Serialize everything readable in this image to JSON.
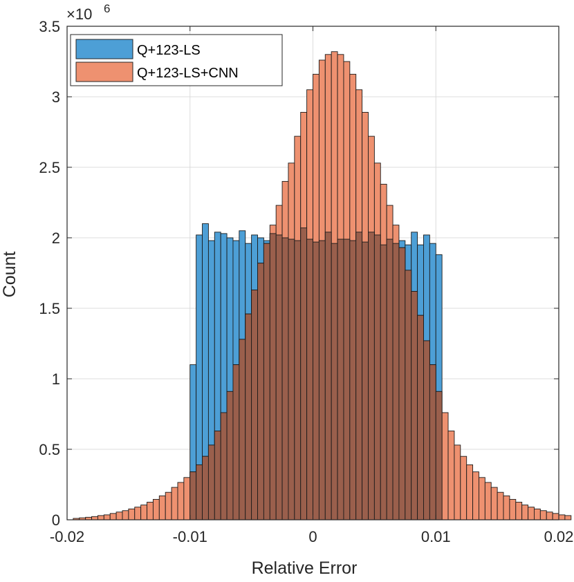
{
  "chart_data": {
    "type": "histogram",
    "xlabel": "Relative Error",
    "ylabel": "Count",
    "y_exponent": "×10",
    "y_exponent_power": "6",
    "xlim": [
      -0.02,
      0.02
    ],
    "ylim": [
      0,
      3.5
    ],
    "y_scale_factor": 1000000,
    "x_ticks": [
      -0.02,
      -0.01,
      0,
      0.01,
      0.02
    ],
    "x_tick_labels": [
      "-0.02",
      "-0.01",
      "0",
      "0.01",
      "0.02"
    ],
    "y_ticks": [
      0,
      0.5,
      1,
      1.5,
      2,
      2.5,
      3,
      3.5
    ],
    "y_tick_labels": [
      "0",
      "0.5",
      "1",
      "1.5",
      "2",
      "2.5",
      "3",
      "3.5"
    ],
    "grid": true,
    "legend_position": "top-left",
    "bin_start": -0.0195,
    "bin_width": 0.0005,
    "series": [
      {
        "name": "Q+123-LS",
        "color": "#4d9fd6",
        "bin_start": -0.01,
        "values": [
          1.1,
          2.02,
          2.1,
          1.98,
          2.04,
          2.03,
          2.0,
          1.98,
          2.05,
          1.96,
          2.02,
          2.0,
          1.98,
          2.03,
          2.02,
          2.0,
          1.99,
          1.98,
          2.07,
          1.99,
          1.97,
          1.98,
          2.04,
          1.96,
          1.99,
          1.99,
          1.98,
          2.04,
          1.97,
          2.04,
          2.02,
          1.95,
          1.99,
          1.96,
          1.98,
          1.95,
          2.04,
          1.95,
          2.02,
          1.96,
          1.88
        ]
      },
      {
        "name": "Q+123-LS+CNN",
        "color": "#ee9170",
        "bin_start": -0.0195,
        "values": [
          0.01,
          0.014,
          0.018,
          0.023,
          0.03,
          0.035,
          0.045,
          0.055,
          0.065,
          0.077,
          0.09,
          0.105,
          0.125,
          0.145,
          0.17,
          0.195,
          0.23,
          0.265,
          0.3,
          0.34,
          0.39,
          0.45,
          0.53,
          0.63,
          0.76,
          0.91,
          1.1,
          1.28,
          1.46,
          1.63,
          1.82,
          1.96,
          2.09,
          2.23,
          2.4,
          2.53,
          2.72,
          2.89,
          3.05,
          3.16,
          3.26,
          3.3,
          3.32,
          3.3,
          3.25,
          3.16,
          3.05,
          2.89,
          2.72,
          2.53,
          2.38,
          2.23,
          2.09,
          1.93,
          1.77,
          1.62,
          1.45,
          1.27,
          1.1,
          0.91,
          0.76,
          0.63,
          0.53,
          0.45,
          0.39,
          0.34,
          0.3,
          0.265,
          0.23,
          0.195,
          0.17,
          0.145,
          0.125,
          0.105,
          0.09,
          0.077,
          0.065,
          0.055,
          0.045,
          0.035,
          0.03
        ]
      }
    ],
    "overlap_color": "#9a5f4c"
  }
}
